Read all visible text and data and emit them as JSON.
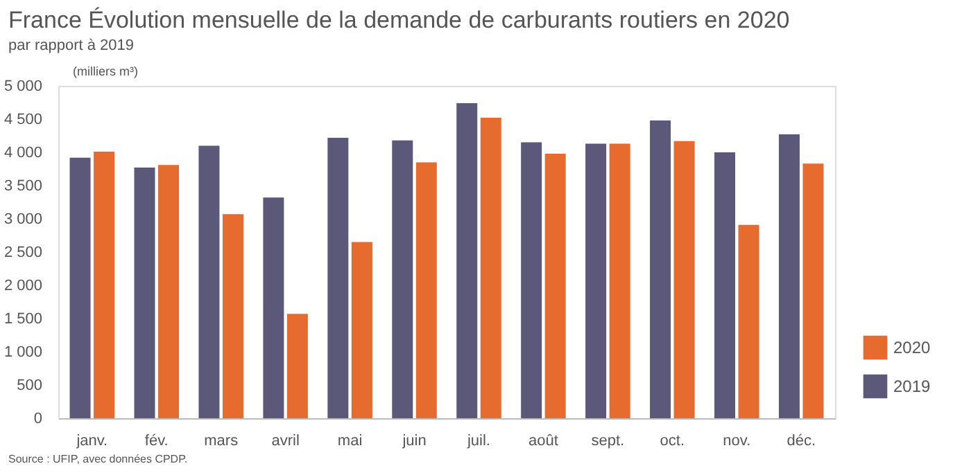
{
  "chart_data": {
    "type": "bar",
    "title": "France Évolution mensuelle de la demande de carburants routiers en 2020",
    "subtitle": "par rapport à 2019",
    "ylabel": "(milliers m³)",
    "annotations": [
      "Source : UFIP, avec données CPDP."
    ],
    "categories": [
      "janv.",
      "fév.",
      "mars",
      "avril",
      "mai",
      "juin",
      "juil.",
      "août",
      "sept.",
      "oct.",
      "nov.",
      "déc."
    ],
    "series": [
      {
        "name": "2019",
        "color": "#5b587a",
        "values": [
          3920,
          3770,
          4100,
          3320,
          4220,
          4180,
          4740,
          4150,
          4130,
          4480,
          4000,
          4270
        ]
      },
      {
        "name": "2020",
        "color": "#e56b2f",
        "values": [
          4010,
          3810,
          3070,
          1570,
          2650,
          3850,
          4520,
          3980,
          4130,
          4170,
          2910,
          3830
        ]
      }
    ],
    "ylim": [
      0,
      5000
    ],
    "yticks": [
      0,
      500,
      {
        "value": 1000,
        "label": "1 000"
      },
      {
        "value": 1500,
        "label": "1 500"
      },
      {
        "value": 2000,
        "label": "2 000"
      },
      {
        "value": 2500,
        "label": "2 500"
      },
      {
        "value": 3000,
        "label": "3 000"
      },
      {
        "value": 3500,
        "label": "3 500"
      },
      {
        "value": 4000,
        "label": "4 000"
      },
      {
        "value": 4500,
        "label": "4 500"
      },
      {
        "value": 5000,
        "label": "5 000"
      }
    ],
    "grid": false,
    "legend": "bottom right"
  }
}
